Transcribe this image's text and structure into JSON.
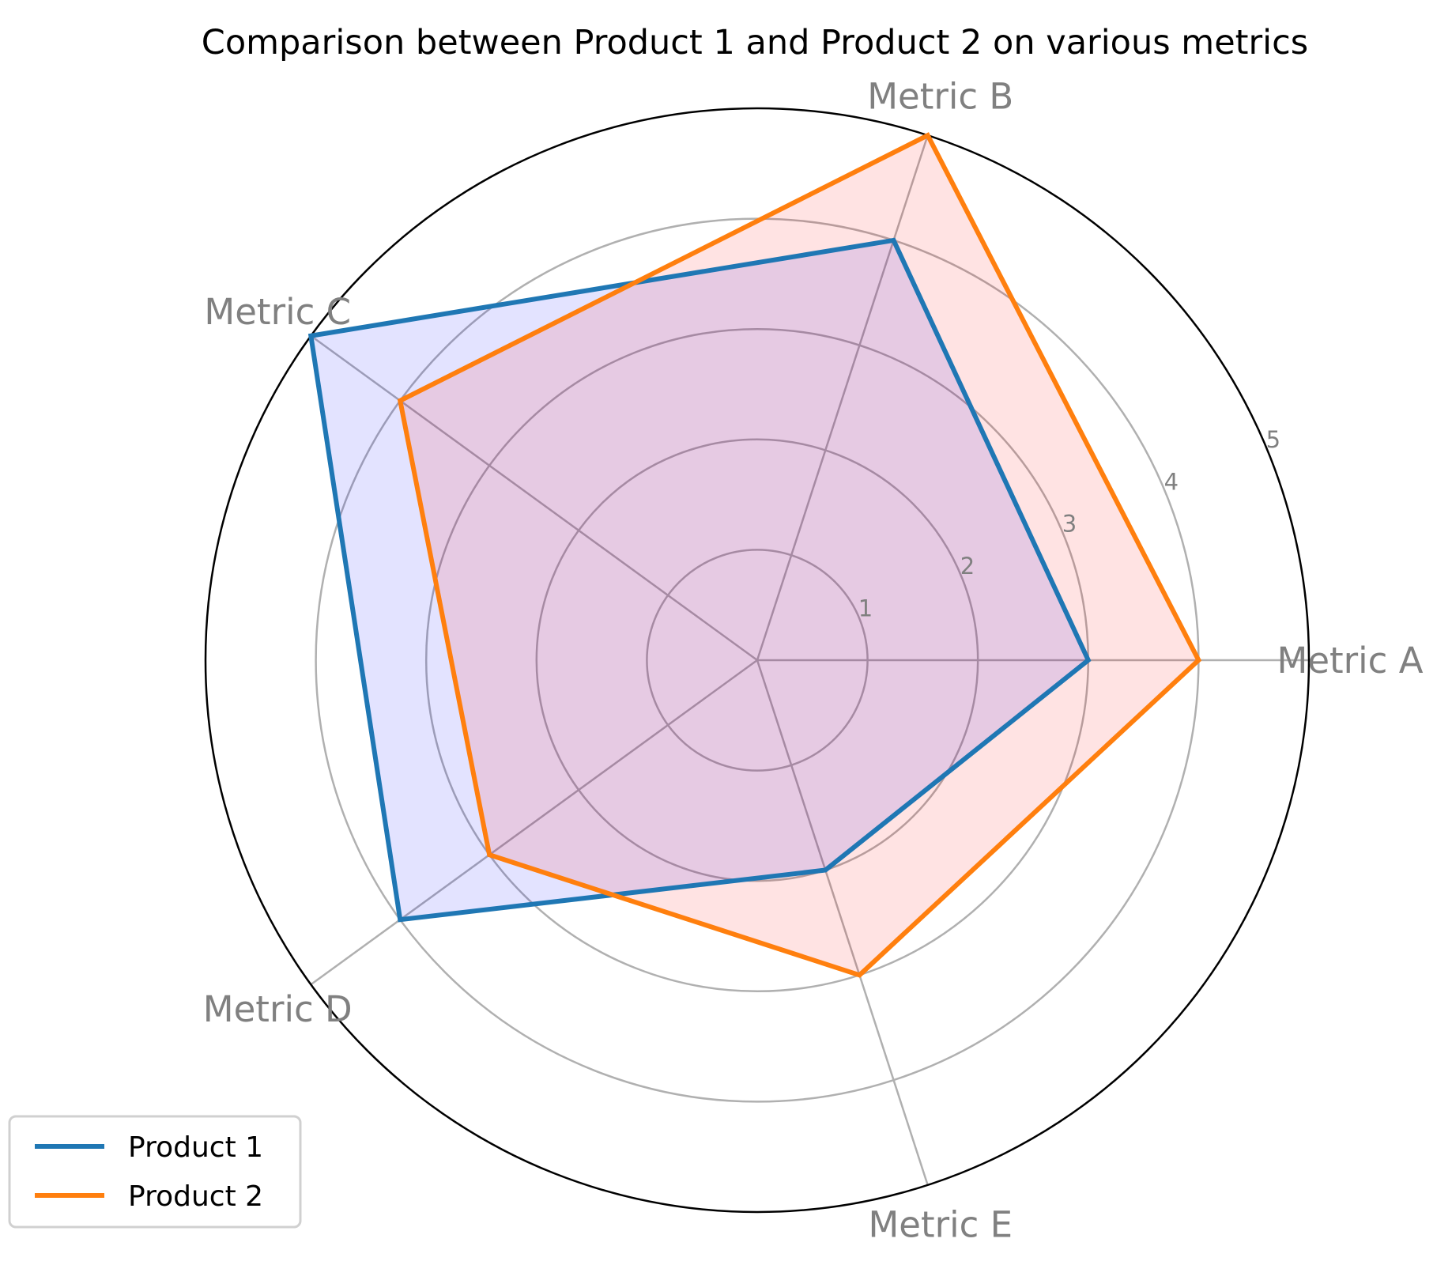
{
  "chart_data": {
    "type": "radar",
    "title": "Comparison between Product 1 and Product 2 on various metrics",
    "categories": [
      "Metric A",
      "Metric B",
      "Metric C",
      "Metric D",
      "Metric E"
    ],
    "rlim": [
      0,
      5
    ],
    "rticks": [
      "1",
      "2",
      "3",
      "4",
      "5"
    ],
    "series": [
      {
        "name": "Product 1",
        "values": [
          3,
          4,
          5,
          4,
          2
        ],
        "line_color": "#1f77b4",
        "fill_color": "#0000ff"
      },
      {
        "name": "Product 2",
        "values": [
          4,
          5,
          4,
          3,
          3
        ],
        "line_color": "#ff7f0e",
        "fill_color": "#ff0000"
      }
    ],
    "grid": true,
    "legend_position": "lower-left"
  }
}
